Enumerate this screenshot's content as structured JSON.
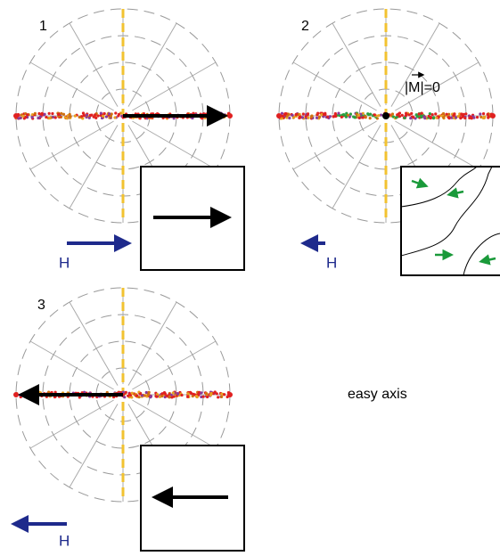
{
  "panels": [
    {
      "number": "1",
      "field_label": "H"
    },
    {
      "number": "2",
      "field_label": "H",
      "magnetization_label": "|M|=0"
    },
    {
      "number": "3",
      "field_label": "H"
    }
  ],
  "axis_label": "easy axis"
}
